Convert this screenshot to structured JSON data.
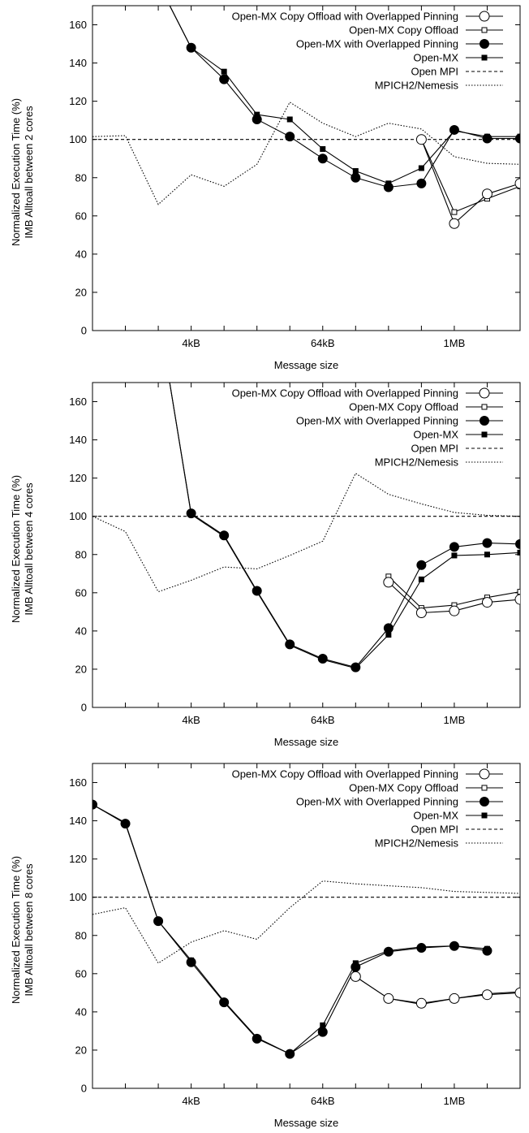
{
  "chart_data": [
    {
      "type": "line",
      "ylabel": "Normalized Execution Time (%)",
      "ylabel2": "IMB Alltoall between 2 cores",
      "xlabel": "Message size",
      "x_tick_labels": [
        {
          "x": 4,
          "label": "4kB"
        },
        {
          "x": 8,
          "label": "64kB"
        },
        {
          "x": 12,
          "label": "1MB"
        }
      ],
      "xlim": [
        1,
        14
      ],
      "ylim": [
        0,
        170
      ],
      "yticks": [
        0,
        20,
        40,
        60,
        80,
        100,
        120,
        140,
        160
      ],
      "legend_position": "top-right",
      "series": [
        {
          "name": "Open-MX Copy Offload with Overlapped Pinning",
          "marker": "open-circle",
          "dash": "solid",
          "points": [
            [
              11,
              100
            ],
            [
              12,
              56
            ],
            [
              13,
              71.5
            ],
            [
              14,
              77
            ]
          ]
        },
        {
          "name": "Open-MX Copy Offload",
          "marker": "open-square",
          "dash": "solid",
          "points": [
            [
              11,
              100
            ],
            [
              12,
              62
            ],
            [
              13,
              69
            ],
            [
              14,
              75.5
            ]
          ]
        },
        {
          "name": "Open-MX with Overlapped Pinning",
          "marker": "filled-circle",
          "dash": "solid",
          "points": [
            [
              3.2,
              175
            ],
            [
              4,
              148
            ],
            [
              5,
              131.5
            ],
            [
              6,
              110.5
            ],
            [
              7,
              101.5
            ],
            [
              8,
              90
            ],
            [
              9,
              80
            ],
            [
              10,
              75
            ],
            [
              11,
              77
            ],
            [
              12,
              105
            ],
            [
              13,
              100.5
            ],
            [
              14,
              100.5
            ]
          ]
        },
        {
          "name": "Open-MX",
          "marker": "filled-square",
          "dash": "solid",
          "points": [
            [
              3.2,
              175
            ],
            [
              4,
              148
            ],
            [
              5,
              135.5
            ],
            [
              6,
              113
            ],
            [
              7,
              110.5
            ],
            [
              8,
              95
            ],
            [
              9,
              83.5
            ],
            [
              10,
              77
            ],
            [
              11,
              85
            ],
            [
              12,
              104.5
            ],
            [
              13,
              101.5
            ],
            [
              14,
              101.5
            ]
          ]
        },
        {
          "name": "Open MPI",
          "marker": "none",
          "dash": "dashed",
          "points": [
            [
              1,
              100
            ],
            [
              14,
              100
            ]
          ]
        },
        {
          "name": "MPICH2/Nemesis",
          "marker": "none",
          "dash": "dotted",
          "points": [
            [
              1,
              101.5
            ],
            [
              2,
              102
            ],
            [
              3,
              66
            ],
            [
              4,
              81.5
            ],
            [
              5,
              75.5
            ],
            [
              6,
              87
            ],
            [
              7,
              119.5
            ],
            [
              8,
              108.5
            ],
            [
              9,
              101.5
            ],
            [
              10,
              108.5
            ],
            [
              11,
              105.5
            ],
            [
              12,
              91
            ],
            [
              13,
              87.5
            ],
            [
              14,
              87
            ]
          ]
        }
      ]
    },
    {
      "type": "line",
      "ylabel": "Normalized Execution Time (%)",
      "ylabel2": "IMB Alltoall between 4 cores",
      "xlabel": "Message size",
      "x_tick_labels": [
        {
          "x": 4,
          "label": "4kB"
        },
        {
          "x": 8,
          "label": "64kB"
        },
        {
          "x": 12,
          "label": "1MB"
        }
      ],
      "xlim": [
        1,
        14
      ],
      "ylim": [
        0,
        170
      ],
      "yticks": [
        0,
        20,
        40,
        60,
        80,
        100,
        120,
        140,
        160
      ],
      "legend_position": "top-right",
      "series": [
        {
          "name": "Open-MX Copy Offload with Overlapped Pinning",
          "marker": "open-circle",
          "dash": "solid",
          "points": [
            [
              10,
              65.5
            ],
            [
              11,
              49.5
            ],
            [
              12,
              50.5
            ],
            [
              13,
              55
            ],
            [
              14,
              56.5
            ]
          ]
        },
        {
          "name": "Open-MX Copy Offload",
          "marker": "open-square",
          "dash": "solid",
          "points": [
            [
              10,
              68.5
            ],
            [
              11,
              52
            ],
            [
              12,
              53.5
            ],
            [
              13,
              57.5
            ],
            [
              14,
              60.5
            ]
          ]
        },
        {
          "name": "Open-MX with Overlapped Pinning",
          "marker": "filled-circle",
          "dash": "solid",
          "points": [
            [
              3.3,
              175
            ],
            [
              4,
              101.5
            ],
            [
              5,
              90
            ],
            [
              6,
              61
            ],
            [
              7,
              33
            ],
            [
              8,
              25.5
            ],
            [
              9,
              21
            ],
            [
              10,
              41.5
            ],
            [
              11,
              74.5
            ],
            [
              12,
              84
            ],
            [
              13,
              86
            ],
            [
              14,
              85.5
            ]
          ]
        },
        {
          "name": "Open-MX",
          "marker": "filled-square",
          "dash": "solid",
          "points": [
            [
              3.3,
              175
            ],
            [
              4,
              101
            ],
            [
              5,
              89.5
            ],
            [
              6,
              60.5
            ],
            [
              7,
              32.5
            ],
            [
              8,
              25
            ],
            [
              9,
              20.5
            ],
            [
              10,
              38
            ],
            [
              11,
              67
            ],
            [
              12,
              79.5
            ],
            [
              13,
              80
            ],
            [
              14,
              81
            ]
          ]
        },
        {
          "name": "Open MPI",
          "marker": "none",
          "dash": "dashed",
          "points": [
            [
              1,
              100
            ],
            [
              14,
              100
            ]
          ]
        },
        {
          "name": "MPICH2/Nemesis",
          "marker": "none",
          "dash": "dotted",
          "points": [
            [
              1,
              100
            ],
            [
              2,
              92
            ],
            [
              3,
              60.5
            ],
            [
              4,
              66.5
            ],
            [
              5,
              73.5
            ],
            [
              6,
              72.5
            ],
            [
              7,
              79.5
            ],
            [
              8,
              87
            ],
            [
              9,
              122.5
            ],
            [
              10,
              111.5
            ],
            [
              11,
              106.5
            ],
            [
              12,
              102
            ],
            [
              13,
              100.5
            ],
            [
              14,
              100
            ]
          ]
        }
      ]
    },
    {
      "type": "line",
      "ylabel": "Normalized Execution Time (%)",
      "ylabel2": "IMB Alltoall between 8 cores",
      "xlabel": "Message size",
      "x_tick_labels": [
        {
          "x": 4,
          "label": "4kB"
        },
        {
          "x": 8,
          "label": "64kB"
        },
        {
          "x": 12,
          "label": "1MB"
        }
      ],
      "xlim": [
        1,
        14
      ],
      "ylim": [
        0,
        170
      ],
      "yticks": [
        0,
        20,
        40,
        60,
        80,
        100,
        120,
        140,
        160
      ],
      "legend_position": "top-right",
      "series": [
        {
          "name": "Open-MX Copy Offload with Overlapped Pinning",
          "marker": "open-circle",
          "dash": "solid",
          "points": [
            [
              9,
              58.5
            ],
            [
              10,
              47
            ],
            [
              11,
              44.5
            ],
            [
              12,
              47
            ],
            [
              13,
              49
            ],
            [
              14,
              50
            ]
          ]
        },
        {
          "name": "Open-MX Copy Offload",
          "marker": "open-square",
          "dash": "solid",
          "points": [
            [
              9,
              58.5
            ],
            [
              10,
              47
            ],
            [
              11,
              44
            ],
            [
              12,
              47
            ],
            [
              13,
              49.5
            ],
            [
              14,
              50.5
            ]
          ]
        },
        {
          "name": "Open-MX with Overlapped Pinning",
          "marker": "filled-circle",
          "dash": "solid",
          "points": [
            [
              1,
              148.5
            ],
            [
              2,
              138.5
            ],
            [
              3,
              87.5
            ],
            [
              4,
              66
            ],
            [
              5,
              45
            ],
            [
              6,
              26
            ],
            [
              7,
              18
            ],
            [
              8,
              29.5
            ],
            [
              9,
              63.5
            ],
            [
              10,
              71.5
            ],
            [
              11,
              73.5
            ],
            [
              12,
              74.5
            ],
            [
              13,
              72
            ]
          ]
        },
        {
          "name": "Open-MX",
          "marker": "filled-square",
          "dash": "solid",
          "points": [
            [
              1,
              148.5
            ],
            [
              2,
              139
            ],
            [
              3,
              87.5
            ],
            [
              4,
              67
            ],
            [
              5,
              45.5
            ],
            [
              6,
              26.5
            ],
            [
              7,
              18
            ],
            [
              8,
              33
            ],
            [
              9,
              65.5
            ],
            [
              10,
              72
            ],
            [
              11,
              74
            ],
            [
              12,
              74.5
            ],
            [
              13,
              73
            ]
          ]
        },
        {
          "name": "Open MPI",
          "marker": "none",
          "dash": "dashed",
          "points": [
            [
              1,
              100
            ],
            [
              14,
              100
            ]
          ]
        },
        {
          "name": "MPICH2/Nemesis",
          "marker": "none",
          "dash": "dotted",
          "points": [
            [
              1,
              91
            ],
            [
              2,
              94.5
            ],
            [
              3,
              65.5
            ],
            [
              4,
              76.5
            ],
            [
              5,
              82.5
            ],
            [
              6,
              78
            ],
            [
              7,
              94.5
            ],
            [
              8,
              108.5
            ],
            [
              9,
              107
            ],
            [
              10,
              106
            ],
            [
              11,
              105
            ],
            [
              12,
              103
            ],
            [
              13,
              102.5
            ],
            [
              14,
              102
            ]
          ]
        }
      ]
    }
  ]
}
